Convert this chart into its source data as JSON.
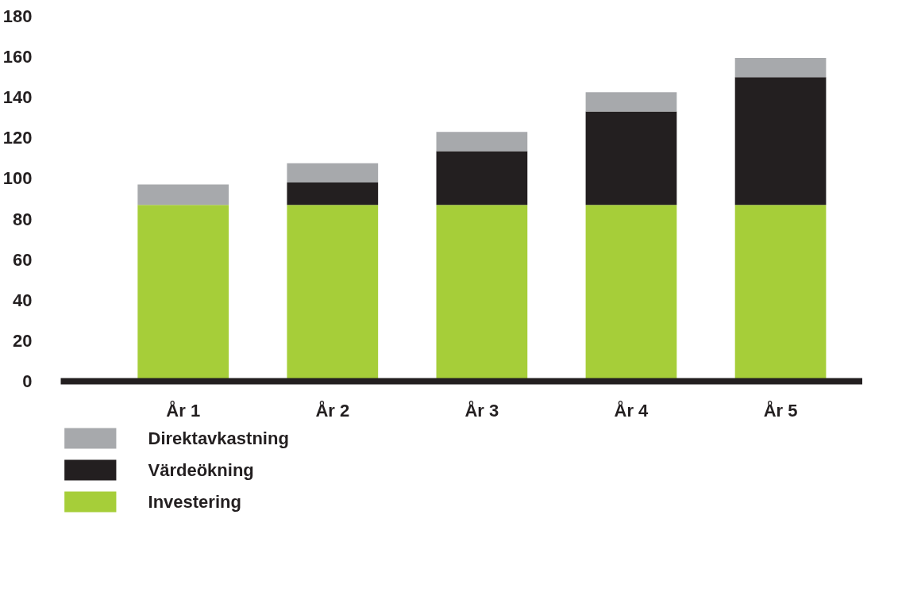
{
  "chart_data": {
    "type": "bar",
    "stacked": true,
    "categories": [
      "År 1",
      "År 2",
      "År 3",
      "År 4",
      "År 5"
    ],
    "series": [
      {
        "name": "Investering",
        "color": "#a6ce39",
        "values": [
          87,
          87,
          87,
          87,
          87
        ]
      },
      {
        "name": "Värdeökning",
        "color": "#231f20",
        "values": [
          0,
          11,
          26.5,
          46,
          63
        ]
      },
      {
        "name": "Direktavkastning",
        "color": "#a7a9ac",
        "values": [
          10,
          9.5,
          9.5,
          9.5,
          9.5
        ]
      }
    ],
    "ylim": [
      0,
      180
    ],
    "yticks": [
      0,
      20,
      40,
      60,
      80,
      100,
      120,
      140,
      160,
      180
    ],
    "grid": false,
    "legend": "bottom"
  }
}
